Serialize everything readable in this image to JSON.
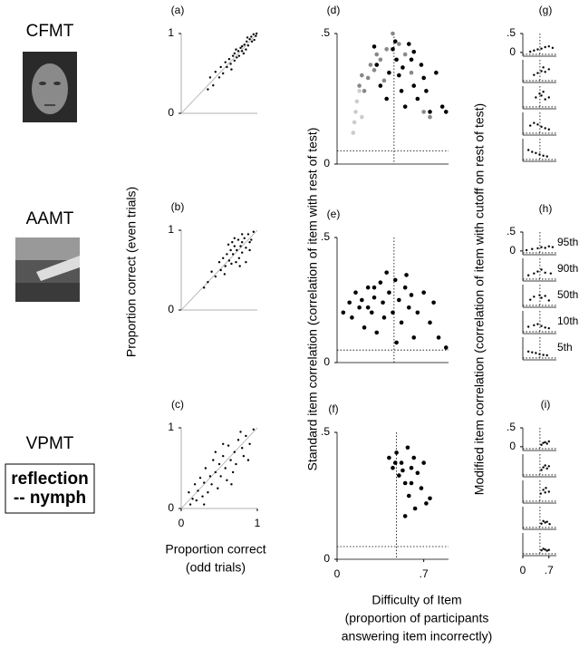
{
  "tests": [
    {
      "name": "CFMT"
    },
    {
      "name": "AAMT"
    },
    {
      "name": "VPMT",
      "example": [
        "reflection",
        "-- nymph"
      ]
    }
  ],
  "axis_labels": {
    "left_y": "Proportion correct (even trials)",
    "left_x": [
      "Proportion correct",
      "(odd trials)"
    ],
    "mid_y": "Standard item correlation (correlation of item with rest of test)",
    "mid_x": [
      "Difficulty of Item",
      "(proportion of participants",
      "answering item incorrectly)"
    ],
    "right_y": "Modified item correlation (correlation of item with cutoff on rest of test)"
  },
  "chart_data": [
    {
      "type": "scatter",
      "panel_label": "(a)",
      "xlim": [
        0,
        1
      ],
      "ylim": [
        0,
        1
      ],
      "yticks": [
        0,
        1
      ],
      "diagonal": true,
      "series": [
        {
          "color": "#000000",
          "x": [
            0.98,
            0.95,
            0.93,
            0.9,
            0.88,
            0.86,
            0.85,
            0.83,
            0.8,
            0.8,
            0.78,
            0.76,
            0.75,
            0.73,
            0.7,
            0.7,
            0.68,
            0.65,
            0.63,
            0.6,
            0.58,
            0.55,
            0.52,
            0.5,
            0.45,
            0.42,
            0.92,
            0.96,
            0.99,
            0.87,
            0.82,
            0.72,
            0.66,
            0.35,
            0.38
          ],
          "values": [
            0.97,
            0.99,
            0.9,
            0.93,
            0.85,
            0.9,
            0.8,
            0.86,
            0.78,
            0.84,
            0.82,
            0.72,
            0.78,
            0.7,
            0.75,
            0.66,
            0.72,
            0.62,
            0.68,
            0.58,
            0.64,
            0.5,
            0.58,
            0.45,
            0.52,
            0.35,
            0.96,
            0.92,
            1.0,
            0.95,
            0.75,
            0.8,
            0.55,
            0.3,
            0.45
          ]
        }
      ]
    },
    {
      "type": "scatter",
      "panel_label": "(b)",
      "xlim": [
        0,
        1
      ],
      "ylim": [
        0,
        1
      ],
      "yticks": [
        0,
        1
      ],
      "diagonal": true,
      "series": [
        {
          "color": "#000000",
          "x": [
            0.95,
            0.9,
            0.88,
            0.85,
            0.83,
            0.8,
            0.8,
            0.78,
            0.76,
            0.75,
            0.73,
            0.72,
            0.7,
            0.68,
            0.66,
            0.65,
            0.63,
            0.6,
            0.58,
            0.55,
            0.52,
            0.5,
            0.45,
            0.4,
            0.35,
            0.3,
            0.85,
            0.9,
            0.7,
            0.62,
            0.57,
            0.92,
            0.8,
            0.77,
            0.67
          ],
          "values": [
            0.98,
            0.85,
            0.95,
            0.78,
            0.9,
            0.72,
            0.85,
            0.8,
            0.65,
            0.88,
            0.75,
            0.6,
            0.8,
            0.7,
            0.58,
            0.75,
            0.62,
            0.7,
            0.55,
            0.65,
            0.5,
            0.6,
            0.42,
            0.48,
            0.35,
            0.28,
            0.6,
            0.75,
            0.9,
            0.82,
            0.45,
            0.88,
            0.95,
            0.55,
            0.85
          ]
        }
      ]
    },
    {
      "type": "scatter",
      "panel_label": "(c)",
      "xlim": [
        0,
        1
      ],
      "ylim": [
        0,
        1
      ],
      "yticks": [
        0,
        1
      ],
      "xticks": [
        0,
        1
      ],
      "diagonal": true,
      "series": [
        {
          "color": "#000000",
          "x": [
            0.95,
            0.9,
            0.85,
            0.82,
            0.8,
            0.75,
            0.72,
            0.7,
            0.68,
            0.65,
            0.62,
            0.6,
            0.58,
            0.55,
            0.52,
            0.5,
            0.48,
            0.45,
            0.42,
            0.4,
            0.38,
            0.35,
            0.32,
            0.3,
            0.28,
            0.25,
            0.22,
            0.2,
            0.18,
            0.15,
            0.12,
            0.1,
            0.88,
            0.78,
            0.55,
            0.3,
            0.66,
            0.45
          ],
          "values": [
            0.98,
            0.8,
            0.9,
            0.65,
            0.75,
            0.85,
            0.55,
            0.7,
            0.45,
            0.6,
            0.78,
            0.35,
            0.5,
            0.65,
            0.4,
            0.55,
            0.25,
            0.45,
            0.6,
            0.3,
            0.4,
            0.2,
            0.5,
            0.32,
            0.15,
            0.38,
            0.22,
            0.1,
            0.3,
            0.12,
            0.05,
            0.2,
            0.6,
            0.95,
            0.8,
            0.05,
            0.3,
            0.7
          ]
        }
      ]
    },
    {
      "type": "scatter",
      "panel_label": "(d)",
      "xlim": [
        0,
        0.9
      ],
      "ylim": [
        0,
        0.5
      ],
      "yticks": [
        0,
        {
          "value": 0.5,
          "label": ".5"
        }
      ],
      "ref_x": 0.46,
      "ref_y": 0.05,
      "series": [
        {
          "color": "#cccccc",
          "x": [
            0.13,
            0.14,
            0.15,
            0.16,
            0.18,
            0.2
          ],
          "values": [
            0.12,
            0.16,
            0.2,
            0.24,
            0.28,
            0.18
          ]
        },
        {
          "color": "#888888",
          "x": [
            0.18,
            0.2,
            0.22,
            0.25,
            0.27,
            0.3,
            0.32,
            0.35,
            0.4,
            0.45,
            0.5,
            0.55,
            0.6,
            0.38,
            0.7,
            0.75
          ],
          "values": [
            0.3,
            0.34,
            0.28,
            0.33,
            0.38,
            0.36,
            0.42,
            0.4,
            0.44,
            0.5,
            0.46,
            0.42,
            0.35,
            0.32,
            0.2,
            0.18
          ]
        },
        {
          "color": "#000000",
          "x": [
            0.3,
            0.32,
            0.35,
            0.4,
            0.42,
            0.45,
            0.48,
            0.5,
            0.52,
            0.55,
            0.58,
            0.6,
            0.62,
            0.65,
            0.68,
            0.7,
            0.72,
            0.75,
            0.8,
            0.85,
            0.88,
            0.47,
            0.53,
            0.62
          ],
          "values": [
            0.45,
            0.38,
            0.3,
            0.25,
            0.35,
            0.44,
            0.4,
            0.34,
            0.28,
            0.22,
            0.46,
            0.4,
            0.3,
            0.25,
            0.38,
            0.33,
            0.28,
            0.2,
            0.35,
            0.22,
            0.2,
            0.47,
            0.37,
            0.43
          ]
        }
      ]
    },
    {
      "type": "scatter",
      "panel_label": "(e)",
      "xlim": [
        0,
        0.9
      ],
      "ylim": [
        0,
        0.5
      ],
      "yticks": [
        0,
        {
          "value": 0.5,
          "label": ".5"
        }
      ],
      "ref_x": 0.46,
      "ref_y": 0.05,
      "series": [
        {
          "color": "#000000",
          "x": [
            0.05,
            0.1,
            0.12,
            0.15,
            0.18,
            0.2,
            0.22,
            0.25,
            0.28,
            0.3,
            0.32,
            0.35,
            0.37,
            0.4,
            0.42,
            0.45,
            0.47,
            0.5,
            0.52,
            0.55,
            0.58,
            0.6,
            0.62,
            0.65,
            0.7,
            0.75,
            0.78,
            0.82,
            0.88,
            0.3,
            0.38,
            0.48,
            0.25,
            0.56
          ],
          "values": [
            0.2,
            0.24,
            0.18,
            0.28,
            0.22,
            0.25,
            0.14,
            0.3,
            0.2,
            0.26,
            0.12,
            0.32,
            0.24,
            0.36,
            0.28,
            0.2,
            0.33,
            0.25,
            0.16,
            0.3,
            0.22,
            0.27,
            0.1,
            0.2,
            0.28,
            0.16,
            0.24,
            0.1,
            0.06,
            0.3,
            0.18,
            0.08,
            0.22,
            0.35
          ]
        }
      ]
    },
    {
      "type": "scatter",
      "panel_label": "(f)",
      "xlim": [
        0,
        0.9
      ],
      "ylim": [
        0,
        0.5
      ],
      "yticks": [
        0,
        {
          "value": 0.5,
          "label": ".5"
        }
      ],
      "xticks": [
        0,
        {
          "value": 0.7,
          "label": ".7"
        }
      ],
      "ref_x": 0.48,
      "ref_y": 0.05,
      "series": [
        {
          "color": "#000000",
          "x": [
            0.42,
            0.45,
            0.48,
            0.5,
            0.52,
            0.55,
            0.57,
            0.58,
            0.6,
            0.62,
            0.63,
            0.65,
            0.68,
            0.7,
            0.72,
            0.75,
            0.55,
            0.6,
            0.53,
            0.47
          ],
          "values": [
            0.4,
            0.36,
            0.42,
            0.33,
            0.38,
            0.3,
            0.44,
            0.25,
            0.36,
            0.4,
            0.2,
            0.34,
            0.28,
            0.38,
            0.22,
            0.24,
            0.17,
            0.3,
            0.35,
            0.38
          ]
        }
      ]
    },
    {
      "type": "scatter",
      "panel_label": "(g)",
      "xlim": [
        0,
        0.9
      ],
      "ylim": [
        -0.1,
        0.5
      ],
      "yticks": [
        0,
        {
          "value": 0.5,
          "label": ".5"
        }
      ],
      "ref_x": 0.46,
      "ref_y": -0.05,
      "series": [
        {
          "color": "#000000",
          "x": [
            0.2,
            0.3,
            0.4,
            0.5,
            0.6,
            0.7,
            0.8
          ],
          "values": [
            0.02,
            0.05,
            0.08,
            0.1,
            0.14,
            0.16,
            0.12
          ]
        }
      ]
    },
    {
      "type": "scatter",
      "xlim": [
        0,
        0.9
      ],
      "ylim": [
        -0.1,
        0.5
      ],
      "ref_x": 0.46,
      "ref_y": -0.05,
      "series": [
        {
          "color": "#000000",
          "x": [
            0.3,
            0.4,
            0.5,
            0.55,
            0.6,
            0.7
          ],
          "values": [
            0.1,
            0.15,
            0.2,
            0.3,
            0.18,
            0.25
          ]
        }
      ]
    },
    {
      "type": "scatter",
      "xlim": [
        0,
        0.9
      ],
      "ylim": [
        -0.1,
        0.5
      ],
      "ref_x": 0.46,
      "ref_y": -0.05,
      "series": [
        {
          "color": "#000000",
          "x": [
            0.35,
            0.45,
            0.5,
            0.55,
            0.6,
            0.7
          ],
          "values": [
            0.2,
            0.3,
            0.25,
            0.35,
            0.15,
            0.2
          ]
        }
      ]
    },
    {
      "type": "scatter",
      "xlim": [
        0,
        0.9
      ],
      "ylim": [
        -0.1,
        0.5
      ],
      "ref_x": 0.46,
      "ref_y": -0.05,
      "series": [
        {
          "color": "#000000",
          "x": [
            0.2,
            0.3,
            0.4,
            0.5,
            0.6,
            0.7
          ],
          "values": [
            0.15,
            0.22,
            0.18,
            0.12,
            0.08,
            0.05
          ]
        }
      ]
    },
    {
      "type": "scatter",
      "xlim": [
        0,
        0.9
      ],
      "ylim": [
        -0.1,
        0.5
      ],
      "ref_x": 0.46,
      "ref_y": -0.05,
      "series": [
        {
          "color": "#000000",
          "x": [
            0.15,
            0.25,
            0.35,
            0.45,
            0.55,
            0.65
          ],
          "values": [
            0.2,
            0.15,
            0.12,
            0.08,
            0.05,
            0.03
          ]
        }
      ]
    },
    {
      "type": "scatter",
      "panel_label": "(h)",
      "percentile_label": "95th",
      "xlim": [
        0,
        0.9
      ],
      "ylim": [
        -0.1,
        0.5
      ],
      "yticks": [
        0,
        {
          "value": 0.5,
          "label": ".5"
        }
      ],
      "ref_x": 0.46,
      "ref_y": -0.05,
      "series": [
        {
          "color": "#000000",
          "x": [
            0.1,
            0.25,
            0.4,
            0.5,
            0.6,
            0.7,
            0.8
          ],
          "values": [
            0.02,
            0.05,
            0.07,
            0.1,
            0.08,
            0.12,
            0.1
          ]
        }
      ]
    },
    {
      "type": "scatter",
      "percentile_label": "90th",
      "xlim": [
        0,
        0.9
      ],
      "ylim": [
        -0.1,
        0.5
      ],
      "ref_x": 0.46,
      "ref_y": -0.05,
      "series": [
        {
          "color": "#000000",
          "x": [
            0.15,
            0.3,
            0.4,
            0.5,
            0.6,
            0.75
          ],
          "values": [
            0.05,
            0.1,
            0.15,
            0.2,
            0.12,
            0.1
          ]
        }
      ]
    },
    {
      "type": "scatter",
      "percentile_label": "50th",
      "xlim": [
        0,
        0.9
      ],
      "ylim": [
        -0.1,
        0.5
      ],
      "ref_x": 0.46,
      "ref_y": -0.05,
      "series": [
        {
          "color": "#000000",
          "x": [
            0.2,
            0.3,
            0.45,
            0.5,
            0.6,
            0.7
          ],
          "values": [
            0.1,
            0.18,
            0.22,
            0.15,
            0.2,
            0.08
          ]
        }
      ]
    },
    {
      "type": "scatter",
      "percentile_label": "10th",
      "xlim": [
        0,
        0.9
      ],
      "ylim": [
        -0.1,
        0.5
      ],
      "ref_x": 0.46,
      "ref_y": -0.05,
      "series": [
        {
          "color": "#000000",
          "x": [
            0.15,
            0.3,
            0.4,
            0.5,
            0.6,
            0.7
          ],
          "values": [
            0.08,
            0.12,
            0.15,
            0.1,
            0.06,
            0.04
          ]
        }
      ]
    },
    {
      "type": "scatter",
      "percentile_label": "5th",
      "xlim": [
        0,
        0.9
      ],
      "ylim": [
        -0.1,
        0.5
      ],
      "ref_x": 0.46,
      "ref_y": -0.05,
      "series": [
        {
          "color": "#000000",
          "x": [
            0.15,
            0.25,
            0.35,
            0.45,
            0.55,
            0.65
          ],
          "values": [
            0.12,
            0.1,
            0.08,
            0.05,
            0.03,
            0.02
          ]
        }
      ]
    },
    {
      "type": "scatter",
      "panel_label": "(i)",
      "xlim": [
        0,
        0.9
      ],
      "ylim": [
        -0.1,
        0.5
      ],
      "yticks": [
        0,
        {
          "value": 0.5,
          "label": ".5"
        }
      ],
      "ref_x": 0.46,
      "ref_y": -0.05,
      "series": [
        {
          "color": "#000000",
          "x": [
            0.5,
            0.55,
            0.6,
            0.65,
            0.7
          ],
          "values": [
            0.05,
            0.1,
            0.12,
            0.08,
            0.14
          ]
        }
      ]
    },
    {
      "type": "scatter",
      "xlim": [
        0,
        0.9
      ],
      "ylim": [
        -0.1,
        0.5
      ],
      "ref_x": 0.46,
      "ref_y": -0.05,
      "series": [
        {
          "color": "#000000",
          "x": [
            0.5,
            0.55,
            0.6,
            0.65,
            0.7
          ],
          "values": [
            0.08,
            0.15,
            0.2,
            0.12,
            0.18
          ]
        }
      ]
    },
    {
      "type": "scatter",
      "xlim": [
        0,
        0.9
      ],
      "ylim": [
        -0.1,
        0.5
      ],
      "ref_x": 0.46,
      "ref_y": -0.05,
      "series": [
        {
          "color": "#000000",
          "x": [
            0.48,
            0.55,
            0.6,
            0.62,
            0.7
          ],
          "values": [
            0.15,
            0.25,
            0.18,
            0.3,
            0.2
          ]
        }
      ]
    },
    {
      "type": "scatter",
      "xlim": [
        0,
        0.9
      ],
      "ylim": [
        -0.1,
        0.5
      ],
      "ref_x": 0.46,
      "ref_y": -0.05,
      "series": [
        {
          "color": "#000000",
          "x": [
            0.5,
            0.55,
            0.6,
            0.65,
            0.72
          ],
          "values": [
            0.05,
            0.12,
            0.08,
            0.1,
            0.04
          ]
        }
      ]
    },
    {
      "type": "scatter",
      "xlim": [
        0,
        0.9
      ],
      "ylim": [
        -0.1,
        0.5
      ],
      "xticks": [
        0,
        {
          "value": 0.7,
          "label": ".7"
        }
      ],
      "ref_x": 0.46,
      "ref_y": -0.05,
      "series": [
        {
          "color": "#000000",
          "x": [
            0.5,
            0.55,
            0.6,
            0.65,
            0.7
          ],
          "values": [
            0.04,
            0.08,
            0.06,
            0.03,
            0.05
          ]
        }
      ]
    }
  ]
}
